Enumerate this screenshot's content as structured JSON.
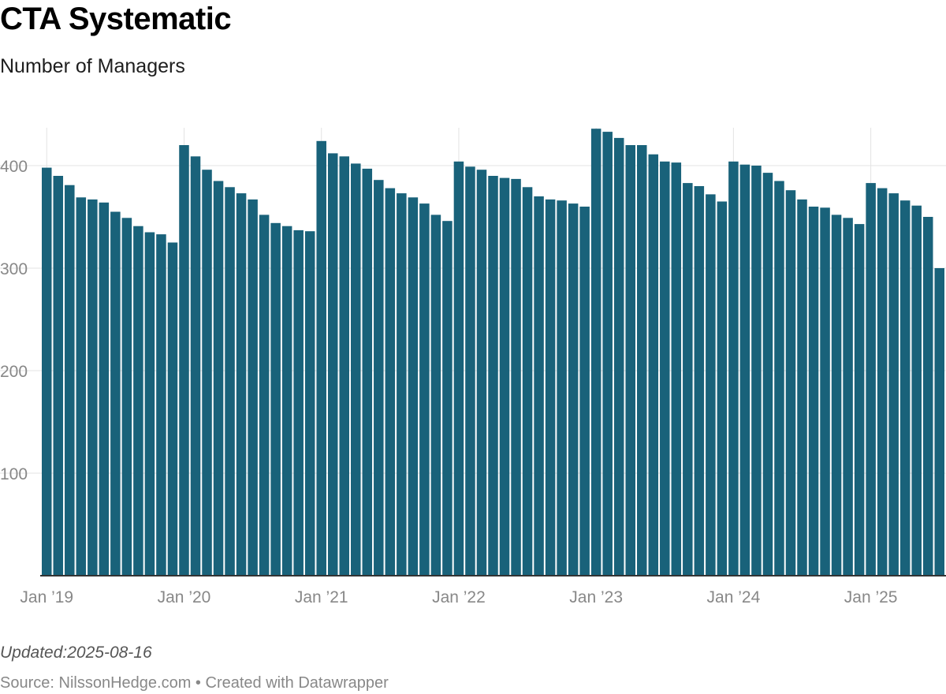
{
  "header": {
    "title": "CTA Systematic",
    "subtitle": "Number of Managers"
  },
  "footer": {
    "note": "Updated:2025-08-16",
    "source_label": "Source:",
    "source_name": "NilssonHedge.com",
    "separator": "•",
    "created_with": "Created with Datawrapper"
  },
  "colors": {
    "bar": "#19627a",
    "grid": "#e3e3e3",
    "tick_text": "#888888",
    "baseline": "#333333"
  },
  "chart_data": {
    "type": "bar",
    "title": "CTA Systematic",
    "subtitle": "Number of Managers",
    "xlabel": "",
    "ylabel": "",
    "ylim": [
      0,
      440
    ],
    "yticks": [
      100,
      200,
      300,
      400
    ],
    "grid": true,
    "x_tick_labels": [
      {
        "label": "Jan ’19",
        "month": "2019-01"
      },
      {
        "label": "Jan ’20",
        "month": "2020-01"
      },
      {
        "label": "Jan ’21",
        "month": "2021-01"
      },
      {
        "label": "Jan ’22",
        "month": "2022-01"
      },
      {
        "label": "Jan ’23",
        "month": "2023-01"
      },
      {
        "label": "Jan ’24",
        "month": "2024-01"
      },
      {
        "label": "Jan ’25",
        "month": "2025-01"
      }
    ],
    "categories": [
      "2019-01",
      "2019-02",
      "2019-03",
      "2019-04",
      "2019-05",
      "2019-06",
      "2019-07",
      "2019-08",
      "2019-09",
      "2019-10",
      "2019-11",
      "2019-12",
      "2020-01",
      "2020-02",
      "2020-03",
      "2020-04",
      "2020-05",
      "2020-06",
      "2020-07",
      "2020-08",
      "2020-09",
      "2020-10",
      "2020-11",
      "2020-12",
      "2021-01",
      "2021-02",
      "2021-03",
      "2021-04",
      "2021-05",
      "2021-06",
      "2021-07",
      "2021-08",
      "2021-09",
      "2021-10",
      "2021-11",
      "2021-12",
      "2022-01",
      "2022-02",
      "2022-03",
      "2022-04",
      "2022-05",
      "2022-06",
      "2022-07",
      "2022-08",
      "2022-09",
      "2022-10",
      "2022-11",
      "2022-12",
      "2023-01",
      "2023-02",
      "2023-03",
      "2023-04",
      "2023-05",
      "2023-06",
      "2023-07",
      "2023-08",
      "2023-09",
      "2023-10",
      "2023-11",
      "2023-12",
      "2024-01",
      "2024-02",
      "2024-03",
      "2024-04",
      "2024-05",
      "2024-06",
      "2024-07",
      "2024-08",
      "2024-09",
      "2024-10",
      "2024-11",
      "2024-12",
      "2025-01",
      "2025-02",
      "2025-03",
      "2025-04",
      "2025-05",
      "2025-06",
      "2025-07"
    ],
    "values": [
      398,
      390,
      381,
      369,
      367,
      364,
      355,
      349,
      341,
      335,
      333,
      325,
      420,
      409,
      396,
      385,
      379,
      373,
      367,
      352,
      344,
      341,
      337,
      336,
      424,
      412,
      409,
      402,
      397,
      386,
      378,
      373,
      369,
      363,
      352,
      346,
      404,
      399,
      396,
      390,
      388,
      387,
      379,
      370,
      367,
      366,
      363,
      360,
      436,
      433,
      427,
      420,
      420,
      411,
      404,
      403,
      383,
      380,
      372,
      365,
      404,
      401,
      400,
      393,
      385,
      376,
      367,
      360,
      359,
      352,
      349,
      343,
      383,
      378,
      373,
      366,
      361,
      350,
      300
    ]
  }
}
